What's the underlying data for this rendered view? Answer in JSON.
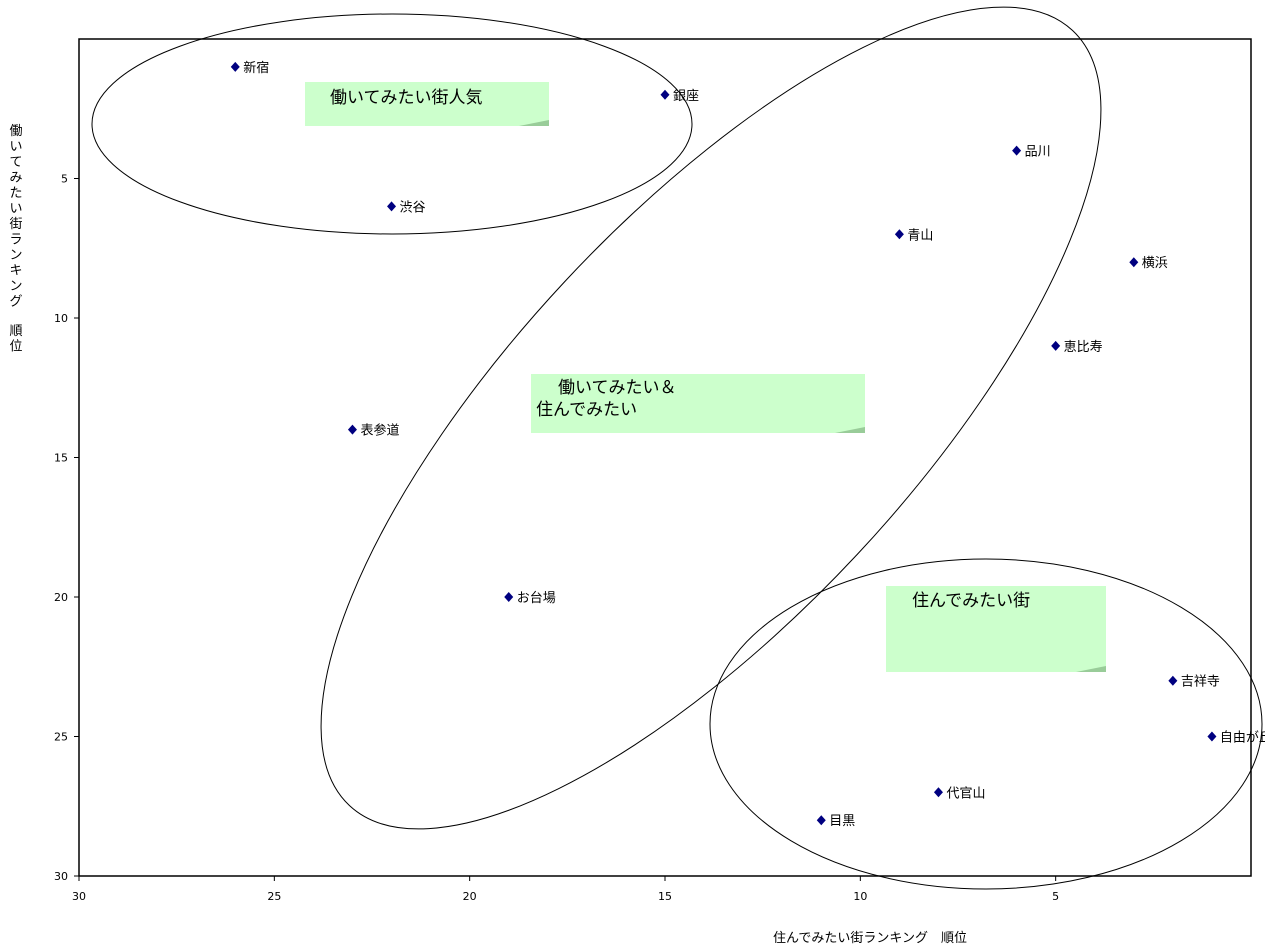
{
  "chart_data": {
    "type": "scatter",
    "xlabel": "住んでみたい街ランキング　順位",
    "ylabel": "働いてみたい街ランキング　順位",
    "xlim": [
      30,
      0
    ],
    "ylim": [
      0,
      30
    ],
    "x_ticks": [
      30,
      25,
      20,
      15,
      10,
      5
    ],
    "y_ticks": [
      5,
      10,
      15,
      20,
      25,
      30
    ],
    "x_reversed": true,
    "y_reversed": true,
    "grid": false,
    "marker": "diamond",
    "marker_color": "#000080",
    "points": [
      {
        "label": "新宿",
        "x": 26,
        "y": 1
      },
      {
        "label": "銀座",
        "x": 15,
        "y": 2
      },
      {
        "label": "品川",
        "x": 6,
        "y": 4
      },
      {
        "label": "渋谷",
        "x": 22,
        "y": 6
      },
      {
        "label": "青山",
        "x": 9,
        "y": 7
      },
      {
        "label": "横浜",
        "x": 3,
        "y": 8
      },
      {
        "label": "恵比寿",
        "x": 5,
        "y": 11
      },
      {
        "label": "表参道",
        "x": 23,
        "y": 14
      },
      {
        "label": "お台場",
        "x": 19,
        "y": 20
      },
      {
        "label": "吉祥寺",
        "x": 2,
        "y": 23
      },
      {
        "label": "自由が丘",
        "x": 1,
        "y": 25
      },
      {
        "label": "代官山",
        "x": 8,
        "y": 27
      },
      {
        "label": "目黒",
        "x": 11,
        "y": 28
      }
    ],
    "annotations": [
      {
        "lines": [
          "働いてみたい街人気"
        ],
        "color": "#ccffcc"
      },
      {
        "lines": [
          "働いてみたい＆",
          "住んでみたい"
        ],
        "color": "#ccffcc"
      },
      {
        "lines": [
          "住んでみたい街"
        ],
        "color": "#ccffcc"
      }
    ]
  }
}
